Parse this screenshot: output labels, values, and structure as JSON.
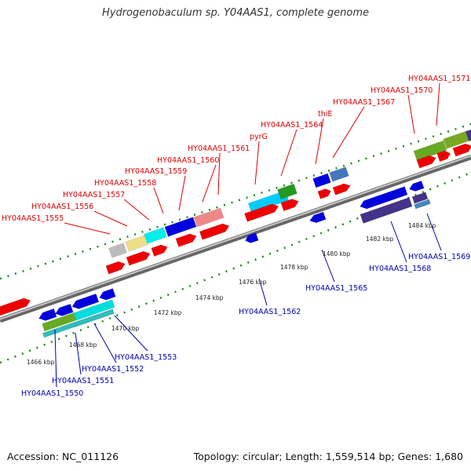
{
  "title": "Hydrogenobaculum sp. Y04AAS1, complete genome",
  "footer": {
    "accession": "Accession: NC_011126",
    "info": "Topology: circular; Length: 1,559,514 bp; Genes: 1,680"
  },
  "colors": {
    "forward_label": "#dd0000",
    "reverse_label": "#0000aa",
    "backbone": "#9a9a9a",
    "ticks": "#228822"
  },
  "kbp_labels": [
    "1466 kbp",
    "1468 kbp",
    "1470 kbp",
    "1472 kbp",
    "1474 kbp",
    "1476 kbp",
    "1478 kbp",
    "1480 kbp",
    "1482 kbp",
    "1484 kbp"
  ],
  "forward_labels": [
    "HY04AAS1_1555",
    "HY04AAS1_1556",
    "HY04AAS1_1557",
    "HY04AAS1_1558",
    "HY04AAS1_1559",
    "HY04AAS1_1560",
    "HY04AAS1_1561",
    "pyrG",
    "HY04AAS1_1564",
    "thiE",
    "HY04AAS1_1567",
    "HY04AAS1_1570",
    "HY04AAS1_1571"
  ],
  "reverse_labels": [
    "HY04AAS1_1550",
    "HY04AAS1_1551",
    "HY04AAS1_1552",
    "HY04AAS1_1553",
    "HY04AAS1_1562",
    "HY04AAS1_1565",
    "HY04AAS1_1568",
    "HY04AAS1_1569"
  ]
}
